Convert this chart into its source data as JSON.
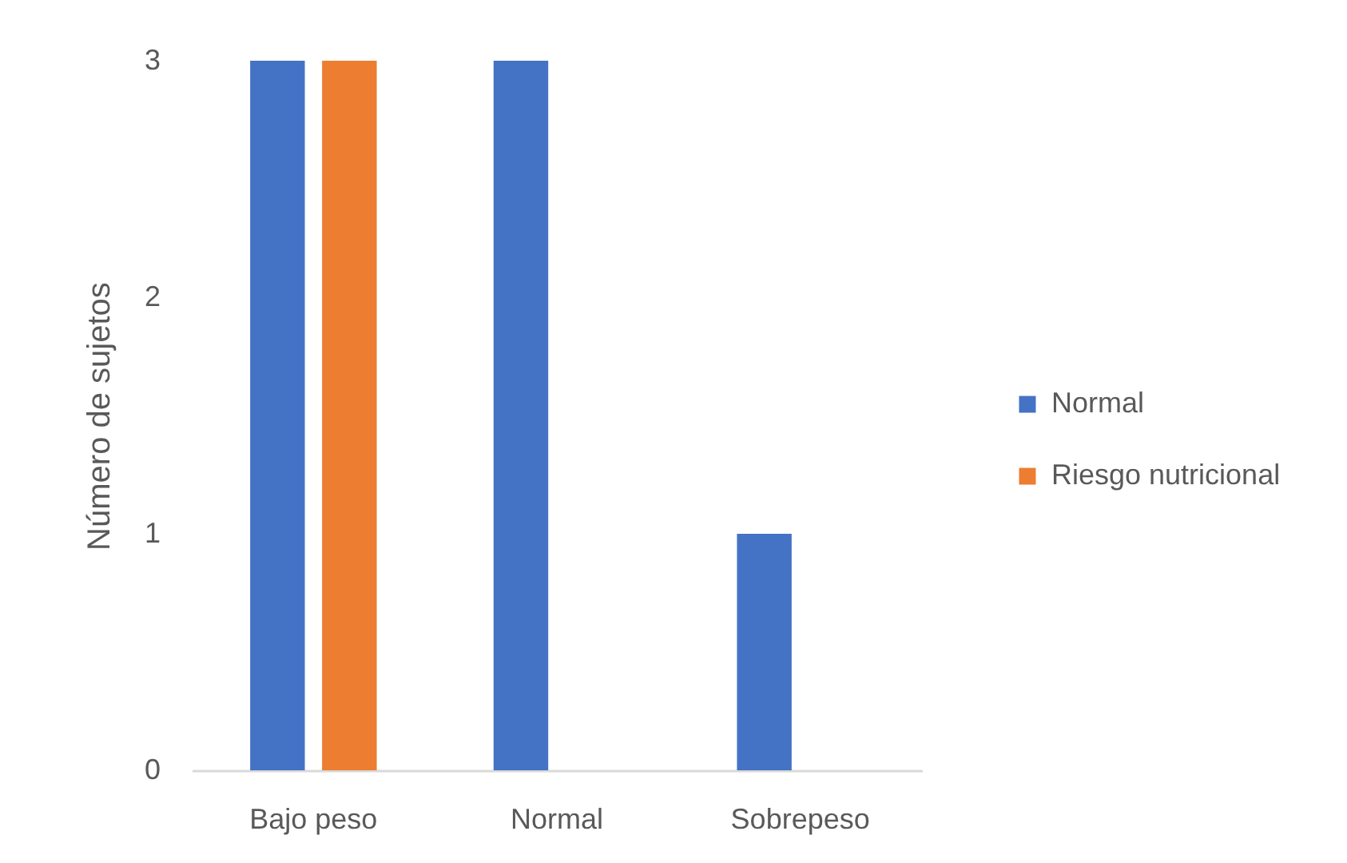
{
  "chart_data": {
    "type": "bar",
    "ylabel": "Número de sujetos",
    "categories": [
      "Bajo peso",
      "Normal",
      "Sobrepeso"
    ],
    "series": [
      {
        "name": "Normal",
        "color": "#4472c4",
        "values": [
          3,
          3,
          1
        ]
      },
      {
        "name": "Riesgo nutricional",
        "color": "#ed7d31",
        "values": [
          3,
          0,
          0
        ]
      }
    ],
    "ylim": [
      0,
      3
    ],
    "yticks": [
      0,
      1,
      2,
      3
    ],
    "grid": false,
    "legend": "right"
  }
}
